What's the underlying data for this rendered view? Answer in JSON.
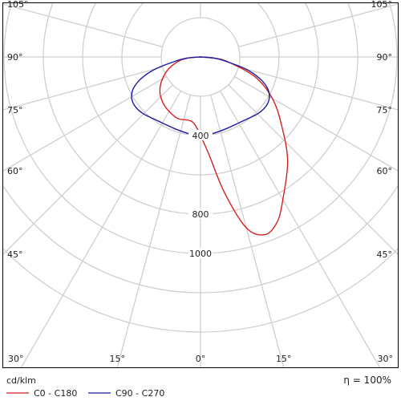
{
  "chart_data": {
    "type": "polar-line",
    "title": "",
    "unit_label": "cd/klm",
    "efficiency_label": "η = 100%",
    "radial_ticks": [
      {
        "value": 400,
        "label": "400"
      },
      {
        "value": 800,
        "label": "800"
      },
      {
        "value": 1000,
        "label": "1000"
      }
    ],
    "grid_radii": [
      200,
      400,
      600,
      800,
      1000,
      1200,
      1400
    ],
    "grid_angles_deg": [
      0,
      15,
      30,
      45,
      60,
      75,
      90,
      105
    ],
    "angle_labels": [
      {
        "angle": 105,
        "side": "left",
        "text": "105°"
      },
      {
        "angle": 105,
        "side": "right",
        "text": "105°"
      },
      {
        "angle": 90,
        "side": "left",
        "text": "90°"
      },
      {
        "angle": 90,
        "side": "right",
        "text": "90°"
      },
      {
        "angle": 75,
        "side": "left",
        "text": "75°"
      },
      {
        "angle": 75,
        "side": "right",
        "text": "75°"
      },
      {
        "angle": 60,
        "side": "left",
        "text": "60°"
      },
      {
        "angle": 60,
        "side": "right",
        "text": "60°"
      },
      {
        "angle": 45,
        "side": "left",
        "text": "45°"
      },
      {
        "angle": 45,
        "side": "right",
        "text": "45°"
      }
    ],
    "bottom_labels": [
      {
        "angle": -30,
        "text": "30°"
      },
      {
        "angle": -15,
        "text": "15°"
      },
      {
        "angle": 0,
        "text": "0°"
      },
      {
        "angle": 15,
        "text": "15°"
      },
      {
        "angle": 30,
        "text": "30°"
      }
    ],
    "series": [
      {
        "name": "C0 - C180",
        "color": "#d42020",
        "points": [
          {
            "angle": -90,
            "value": 0
          },
          {
            "angle": -85,
            "value": 58
          },
          {
            "angle": -80,
            "value": 108
          },
          {
            "angle": -70,
            "value": 170
          },
          {
            "angle": -60,
            "value": 224
          },
          {
            "angle": -50,
            "value": 270
          },
          {
            "angle": -40,
            "value": 300
          },
          {
            "angle": -30,
            "value": 320
          },
          {
            "angle": -20,
            "value": 334
          },
          {
            "angle": -10,
            "value": 328
          },
          {
            "angle": -5,
            "value": 344
          },
          {
            "angle": 0,
            "value": 400
          },
          {
            "angle": 5,
            "value": 500
          },
          {
            "angle": 10,
            "value": 700
          },
          {
            "angle": 15,
            "value": 900
          },
          {
            "angle": 20,
            "value": 962
          },
          {
            "angle": 25,
            "value": 925
          },
          {
            "angle": 30,
            "value": 838
          },
          {
            "angle": 40,
            "value": 690
          },
          {
            "angle": 50,
            "value": 538
          },
          {
            "angle": 60,
            "value": 422
          },
          {
            "angle": 70,
            "value": 295
          },
          {
            "angle": 80,
            "value": 142
          },
          {
            "angle": 85,
            "value": 68
          },
          {
            "angle": 90,
            "value": 0
          }
        ]
      },
      {
        "name": "C90 - C270",
        "color": "#1a1aa0",
        "points": [
          {
            "angle": -90,
            "value": 0
          },
          {
            "angle": -85,
            "value": 70
          },
          {
            "angle": -80,
            "value": 135
          },
          {
            "angle": -75,
            "value": 240
          },
          {
            "angle": -70,
            "value": 321
          },
          {
            "angle": -65,
            "value": 376
          },
          {
            "angle": -60,
            "value": 405
          },
          {
            "angle": -55,
            "value": 416
          },
          {
            "angle": -50,
            "value": 416
          },
          {
            "angle": -45,
            "value": 410
          },
          {
            "angle": -40,
            "value": 400
          },
          {
            "angle": -30,
            "value": 388
          },
          {
            "angle": -20,
            "value": 388
          },
          {
            "angle": -10,
            "value": 394
          },
          {
            "angle": -5,
            "value": 398
          },
          {
            "angle": 0,
            "value": 397
          },
          {
            "angle": 5,
            "value": 398
          },
          {
            "angle": 10,
            "value": 394
          },
          {
            "angle": 20,
            "value": 388
          },
          {
            "angle": 30,
            "value": 388
          },
          {
            "angle": 40,
            "value": 400
          },
          {
            "angle": 45,
            "value": 410
          },
          {
            "angle": 50,
            "value": 416
          },
          {
            "angle": 55,
            "value": 416
          },
          {
            "angle": 60,
            "value": 405
          },
          {
            "angle": 65,
            "value": 376
          },
          {
            "angle": 70,
            "value": 321
          },
          {
            "angle": 75,
            "value": 240
          },
          {
            "angle": 80,
            "value": 135
          },
          {
            "angle": 85,
            "value": 70
          },
          {
            "angle": 90,
            "value": 0
          }
        ]
      }
    ],
    "legend_position": "bottom-left"
  }
}
